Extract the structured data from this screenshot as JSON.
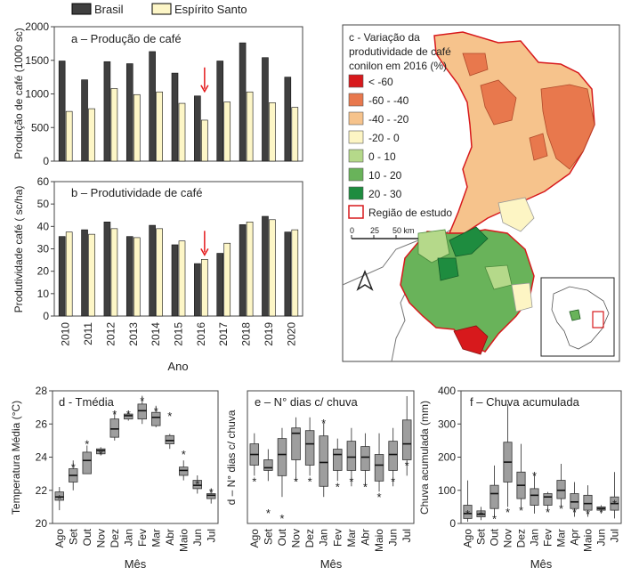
{
  "legend_top": {
    "brasil": "Brasil",
    "es": "Espírito Santo",
    "colors": {
      "brasil": "#3f3f3f",
      "es": "#fdf6c7"
    }
  },
  "chart_data": [
    {
      "type": "bar",
      "panel": "a",
      "title": "a – Produção de café",
      "ylabel": "Produção de café (1000 sc)",
      "ylim": [
        0,
        2000
      ],
      "yticks": [
        0,
        500,
        1000,
        1500,
        2000
      ],
      "categories": [
        "2010",
        "2011",
        "2012",
        "2013",
        "2014",
        "2015",
        "2016",
        "2017",
        "2018",
        "2019",
        "2020"
      ],
      "series": [
        {
          "name": "Brasil",
          "values": [
            1490,
            1210,
            1480,
            1450,
            1630,
            1310,
            970,
            1490,
            1760,
            1540,
            1250
          ]
        },
        {
          "name": "Espírito Santo",
          "values": [
            740,
            780,
            1080,
            990,
            1030,
            860,
            610,
            880,
            1030,
            870,
            800
          ]
        }
      ],
      "arrow_at": "2016"
    },
    {
      "type": "bar",
      "panel": "b",
      "title": "b – Produtividade de café",
      "ylabel": "Produtividade café ( sc/ha)",
      "xlabel": "Ano",
      "ylim": [
        0,
        60
      ],
      "yticks": [
        0,
        10,
        20,
        30,
        40,
        50,
        60
      ],
      "categories": [
        "2010",
        "2011",
        "2012",
        "2013",
        "2014",
        "2015",
        "2016",
        "2017",
        "2018",
        "2019",
        "2020"
      ],
      "series": [
        {
          "name": "Brasil",
          "values": [
            35.5,
            38.5,
            42,
            35.5,
            40.5,
            31.8,
            23.4,
            28,
            40.8,
            44.5,
            37.5
          ]
        },
        {
          "name": "Espírito Santo",
          "values": [
            37.5,
            36.5,
            39,
            35,
            39,
            33.5,
            25.3,
            32.5,
            42,
            43,
            38.5
          ]
        }
      ],
      "arrow_at": "2016"
    },
    {
      "type": "boxplot",
      "panel": "d",
      "title": "d - Tmédia",
      "ylabel": "Temperatura Média (°C)",
      "xlabel": "Mês",
      "ylim": [
        20,
        28
      ],
      "yticks": [
        20,
        22,
        24,
        26,
        28
      ],
      "categories": [
        "Ago",
        "Set",
        "Out",
        "Nov",
        "Dez",
        "Jan",
        "Fev",
        "Mar",
        "Abr",
        "Maio",
        "Jun",
        "Jul"
      ],
      "boxes": [
        {
          "min": 20.8,
          "q1": 21.4,
          "median": 21.6,
          "q3": 21.9,
          "max": 22.2
        },
        {
          "min": 22.0,
          "q1": 22.5,
          "median": 22.9,
          "q3": 23.3,
          "max": 23.8
        },
        {
          "min": 23.0,
          "q1": 23.0,
          "median": 23.8,
          "q3": 24.3,
          "max": 24.7
        },
        {
          "min": 24.1,
          "q1": 24.2,
          "median": 24.4,
          "q3": 24.5,
          "max": 24.6
        },
        {
          "min": 25.0,
          "q1": 25.2,
          "median": 25.7,
          "q3": 26.3,
          "max": 26.8
        },
        {
          "min": 26.2,
          "q1": 26.3,
          "median": 26.5,
          "q3": 26.6,
          "max": 26.8
        },
        {
          "min": 26.0,
          "q1": 26.3,
          "median": 26.8,
          "q3": 27.2,
          "max": 27.7
        },
        {
          "min": 25.8,
          "q1": 25.9,
          "median": 26.4,
          "q3": 26.7,
          "max": 27.1
        },
        {
          "min": 24.5,
          "q1": 24.8,
          "median": 25.0,
          "q3": 25.3,
          "max": 25.4
        },
        {
          "min": 22.6,
          "q1": 22.9,
          "median": 23.2,
          "q3": 23.4,
          "max": 23.8
        },
        {
          "min": 21.8,
          "q1": 22.1,
          "median": 22.3,
          "q3": 22.6,
          "max": 22.9
        },
        {
          "min": 21.2,
          "q1": 21.5,
          "median": 21.7,
          "q3": 21.8,
          "max": 22.1
        }
      ],
      "year_2016": [
        21.5,
        23.4,
        24.8,
        24.2,
        26.6,
        26.6,
        27.4,
        26.8,
        26.5,
        24.2,
        22.4,
        21.9
      ]
    },
    {
      "type": "boxplot",
      "panel": "e",
      "title": "e – N° dias c/ chuva",
      "ylabel": "d – N° dias c/ chuva",
      "xlabel": "Mês",
      "ylim": [
        0,
        25
      ],
      "yticks": [],
      "categories": [
        "Ago",
        "Set",
        "Out",
        "Nov",
        "Dez",
        "Jan",
        "Fev",
        "Mar",
        "Abr",
        "Maio",
        "Jun",
        "Jul"
      ],
      "boxes": [
        {
          "min": 9,
          "q1": 11,
          "median": 13,
          "q3": 15,
          "max": 17
        },
        {
          "min": 8,
          "q1": 10,
          "median": 10.5,
          "q3": 12,
          "max": 14
        },
        {
          "min": 5,
          "q1": 9,
          "median": 13,
          "q3": 16,
          "max": 18
        },
        {
          "min": 8,
          "q1": 12,
          "median": 17,
          "q3": 18,
          "max": 20
        },
        {
          "min": 9,
          "q1": 11,
          "median": 15,
          "q3": 17.5,
          "max": 20
        },
        {
          "min": 5,
          "q1": 7,
          "median": 11.5,
          "q3": 16.5,
          "max": 19
        },
        {
          "min": 8,
          "q1": 10,
          "median": 13,
          "q3": 14,
          "max": 16
        },
        {
          "min": 7,
          "q1": 10,
          "median": 12.5,
          "q3": 15.5,
          "max": 18
        },
        {
          "min": 7,
          "q1": 10,
          "median": 12.5,
          "q3": 14.5,
          "max": 17
        },
        {
          "min": 6,
          "q1": 8,
          "median": 11,
          "q3": 13,
          "max": 17
        },
        {
          "min": 7,
          "q1": 10,
          "median": 13,
          "q3": 15.5,
          "max": 18
        },
        {
          "min": 9,
          "q1": 12,
          "median": 15,
          "q3": 19.5,
          "max": 24
        }
      ],
      "year_2016": [
        8,
        2,
        1,
        8,
        8,
        19,
        7,
        8,
        7,
        5,
        8,
        11
      ]
    },
    {
      "type": "boxplot",
      "panel": "f",
      "title": "f – Chuva acumulada",
      "ylabel": "Chuva acumulada (mm)",
      "xlabel": "Mês",
      "ylim": [
        0,
        400
      ],
      "yticks": [
        0,
        100,
        200,
        300,
        400
      ],
      "categories": [
        "Ago",
        "Set",
        "Out",
        "Nov",
        "Dez",
        "Jan",
        "Fev",
        "Mar",
        "Apr",
        "Maio",
        "Jun",
        "Jul"
      ],
      "boxes": [
        {
          "min": 5,
          "q1": 15,
          "median": 30,
          "q3": 55,
          "max": 130
        },
        {
          "min": 10,
          "q1": 20,
          "median": 28,
          "q3": 38,
          "max": 50
        },
        {
          "min": 20,
          "q1": 45,
          "median": 90,
          "q3": 115,
          "max": 175
        },
        {
          "min": 50,
          "q1": 125,
          "median": 185,
          "q3": 245,
          "max": 360
        },
        {
          "min": 45,
          "q1": 75,
          "median": 115,
          "q3": 155,
          "max": 240
        },
        {
          "min": 30,
          "q1": 55,
          "median": 85,
          "q3": 105,
          "max": 150
        },
        {
          "min": 40,
          "q1": 55,
          "median": 80,
          "q3": 90,
          "max": 95
        },
        {
          "min": 50,
          "q1": 75,
          "median": 100,
          "q3": 130,
          "max": 180
        },
        {
          "min": 20,
          "q1": 45,
          "median": 65,
          "q3": 90,
          "max": 125
        },
        {
          "min": 20,
          "q1": 40,
          "median": 60,
          "q3": 85,
          "max": 115
        },
        {
          "min": 30,
          "q1": 40,
          "median": 45,
          "q3": 50,
          "max": 55
        },
        {
          "min": 15,
          "q1": 40,
          "median": 60,
          "q3": 80,
          "max": 155
        }
      ],
      "year_2016": [
        30,
        25,
        15,
        35,
        40,
        145,
        35,
        45,
        35,
        30,
        35,
        60
      ]
    }
  ],
  "map": {
    "title_lines": [
      "c - Variação da",
      "produtividade de café",
      "conilon em 2016 (%)"
    ],
    "legend": [
      {
        "label": "< -60",
        "color": "#d7191c"
      },
      {
        "label": "-60 - -40",
        "color": "#e8784d"
      },
      {
        "label": "-40 - -20",
        "color": "#f6c38c"
      },
      {
        "label": "-20 - 0",
        "color": "#fdf5c4"
      },
      {
        "label": "0 - 10",
        "color": "#b5d98a"
      },
      {
        "label": "10 - 20",
        "color": "#69b35a"
      },
      {
        "label": "20 - 30",
        "color": "#1e8c3f"
      }
    ],
    "study_region_label": "Região de estudo",
    "scale_labels": [
      "0",
      "25",
      "50 km"
    ]
  }
}
